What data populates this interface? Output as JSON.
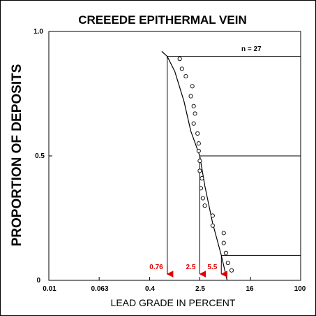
{
  "chart_data": {
    "type": "scatter",
    "title": "CREEEDE EPITHERMAL VEIN",
    "xlabel": "LEAD GRADE IN PERCENT",
    "ylabel": "PROPORTION OF DEPOSITS",
    "x_scale": "log",
    "xlim": [
      0.01,
      100
    ],
    "ylim": [
      0,
      1
    ],
    "x_ticks": [
      "0.01",
      "0.063",
      "0.4",
      "2.5",
      "16",
      "100"
    ],
    "y_ticks": [
      "0",
      "0.5",
      "1.0"
    ],
    "annotation": "n = 27",
    "grid": false,
    "points": [
      {
        "x": 1.2,
        "y": 0.89
      },
      {
        "x": 1.3,
        "y": 0.85
      },
      {
        "x": 1.5,
        "y": 0.82
      },
      {
        "x": 1.9,
        "y": 0.78
      },
      {
        "x": 1.8,
        "y": 0.74
      },
      {
        "x": 2.0,
        "y": 0.7
      },
      {
        "x": 2.1,
        "y": 0.67
      },
      {
        "x": 2.0,
        "y": 0.63
      },
      {
        "x": 2.3,
        "y": 0.59
      },
      {
        "x": 2.4,
        "y": 0.55
      },
      {
        "x": 2.4,
        "y": 0.52
      },
      {
        "x": 2.5,
        "y": 0.48
      },
      {
        "x": 2.5,
        "y": 0.44
      },
      {
        "x": 2.7,
        "y": 0.41
      },
      {
        "x": 2.6,
        "y": 0.37
      },
      {
        "x": 2.8,
        "y": 0.33
      },
      {
        "x": 3.0,
        "y": 0.3
      },
      {
        "x": 4.0,
        "y": 0.26
      },
      {
        "x": 4.0,
        "y": 0.22
      },
      {
        "x": 6.0,
        "y": 0.19
      },
      {
        "x": 6.0,
        "y": 0.15
      },
      {
        "x": 6.5,
        "y": 0.11
      },
      {
        "x": 7.0,
        "y": 0.07
      },
      {
        "x": 8.0,
        "y": 0.04
      }
    ],
    "fitted_curve": {
      "name": "",
      "points": [
        {
          "x": 0.62,
          "y": 0.92
        },
        {
          "x": 0.76,
          "y": 0.9
        },
        {
          "x": 1.0,
          "y": 0.84
        },
        {
          "x": 1.4,
          "y": 0.72
        },
        {
          "x": 1.8,
          "y": 0.6
        },
        {
          "x": 2.5,
          "y": 0.5
        },
        {
          "x": 3.0,
          "y": 0.38
        },
        {
          "x": 4.0,
          "y": 0.23
        },
        {
          "x": 5.5,
          "y": 0.1
        },
        {
          "x": 6.8,
          "y": 0.0
        }
      ]
    },
    "percentiles": [
      {
        "label": "0.76",
        "x": 0.76,
        "y": 0.9
      },
      {
        "label": "2.5",
        "x": 2.5,
        "y": 0.5
      },
      {
        "label": "5.5",
        "x": 5.5,
        "y": 0.1
      }
    ]
  }
}
